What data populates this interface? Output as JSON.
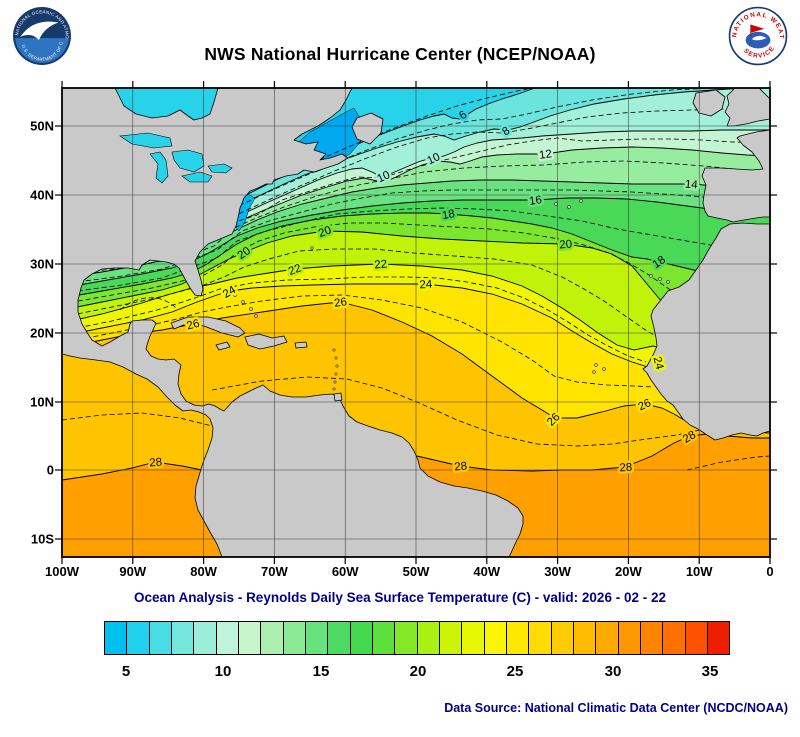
{
  "header": {
    "title": "NWS National Hurricane Center (NCEP/NOAA)"
  },
  "logos": {
    "noaa_ring_text": "NATIONAL OCEANIC AND ATMOSPHERIC ADMINISTRATION",
    "noaa_ring_bottom": "U.S. DEPARTMENT OF COMMERCE",
    "nws_arc_top": "NATIONAL WEATHER",
    "nws_arc_bottom": "SERVICE"
  },
  "map": {
    "lat_labels": [
      "50N",
      "40N",
      "30N",
      "20N",
      "10N",
      "0",
      "10S"
    ],
    "lon_labels": [
      "100W",
      "90W",
      "80W",
      "70W",
      "60W",
      "50W",
      "40W",
      "30W",
      "20W",
      "10W",
      "0"
    ],
    "contour_labels": [
      {
        "t": "6"
      },
      {
        "t": "8"
      },
      {
        "t": "10"
      },
      {
        "t": "10"
      },
      {
        "t": "12"
      },
      {
        "t": "14"
      },
      {
        "t": "16"
      },
      {
        "t": "18"
      },
      {
        "t": "18"
      },
      {
        "t": "20"
      },
      {
        "t": "20"
      },
      {
        "t": "20"
      },
      {
        "t": "22"
      },
      {
        "t": "22"
      },
      {
        "t": "24"
      },
      {
        "t": "24"
      },
      {
        "t": "26"
      },
      {
        "t": "26"
      },
      {
        "t": "26"
      },
      {
        "t": "26"
      },
      {
        "t": "24"
      },
      {
        "t": "28"
      },
      {
        "t": "28"
      },
      {
        "t": "28"
      },
      {
        "t": "28"
      }
    ]
  },
  "subtitle": {
    "text": "Ocean Analysis - Reynolds Daily Sea Surface Temperature (C) - valid: 2026 - 02 - 22"
  },
  "colorbar": {
    "colors": [
      "#00c0f0",
      "#20d0ec",
      "#48dce4",
      "#74e6dc",
      "#9ceed8",
      "#bef4da",
      "#c8f6cc",
      "#acf0b0",
      "#8cea96",
      "#68e27c",
      "#4cda62",
      "#44d84e",
      "#5ee03c",
      "#84e828",
      "#aaf014",
      "#ccf406",
      "#e8f800",
      "#fcf400",
      "#ffe800",
      "#ffdc00",
      "#ffcc00",
      "#ffbc00",
      "#ffaa00",
      "#ff9800",
      "#ff8400",
      "#ff7000",
      "#ff5000",
      "#f01e00"
    ],
    "ticks": [
      "5",
      "10",
      "15",
      "20",
      "25",
      "30",
      "35"
    ]
  },
  "footer": {
    "text": "Data Source: National Climatic Data Center (NCDC/NOAA)"
  },
  "chart_data": {
    "type": "heatmap",
    "title": "NWS National Hurricane Center (NCEP/NOAA)",
    "subtitle": "Ocean Analysis - Reynolds Daily Sea Surface Temperature (C) - valid: 2026 - 02 - 22",
    "variable": "sea surface temperature",
    "units": "C",
    "lon_range": [
      "100W",
      "0"
    ],
    "lat_range": [
      "10S",
      "55N"
    ],
    "contour_interval_c": 2,
    "labeled_contours_c": [
      6,
      8,
      10,
      12,
      14,
      16,
      18,
      20,
      22,
      24,
      26,
      28
    ],
    "colorbar_ticks_c": [
      5,
      10,
      15,
      20,
      25,
      30,
      35
    ],
    "grid_on": true,
    "legend_position": "bottom"
  }
}
